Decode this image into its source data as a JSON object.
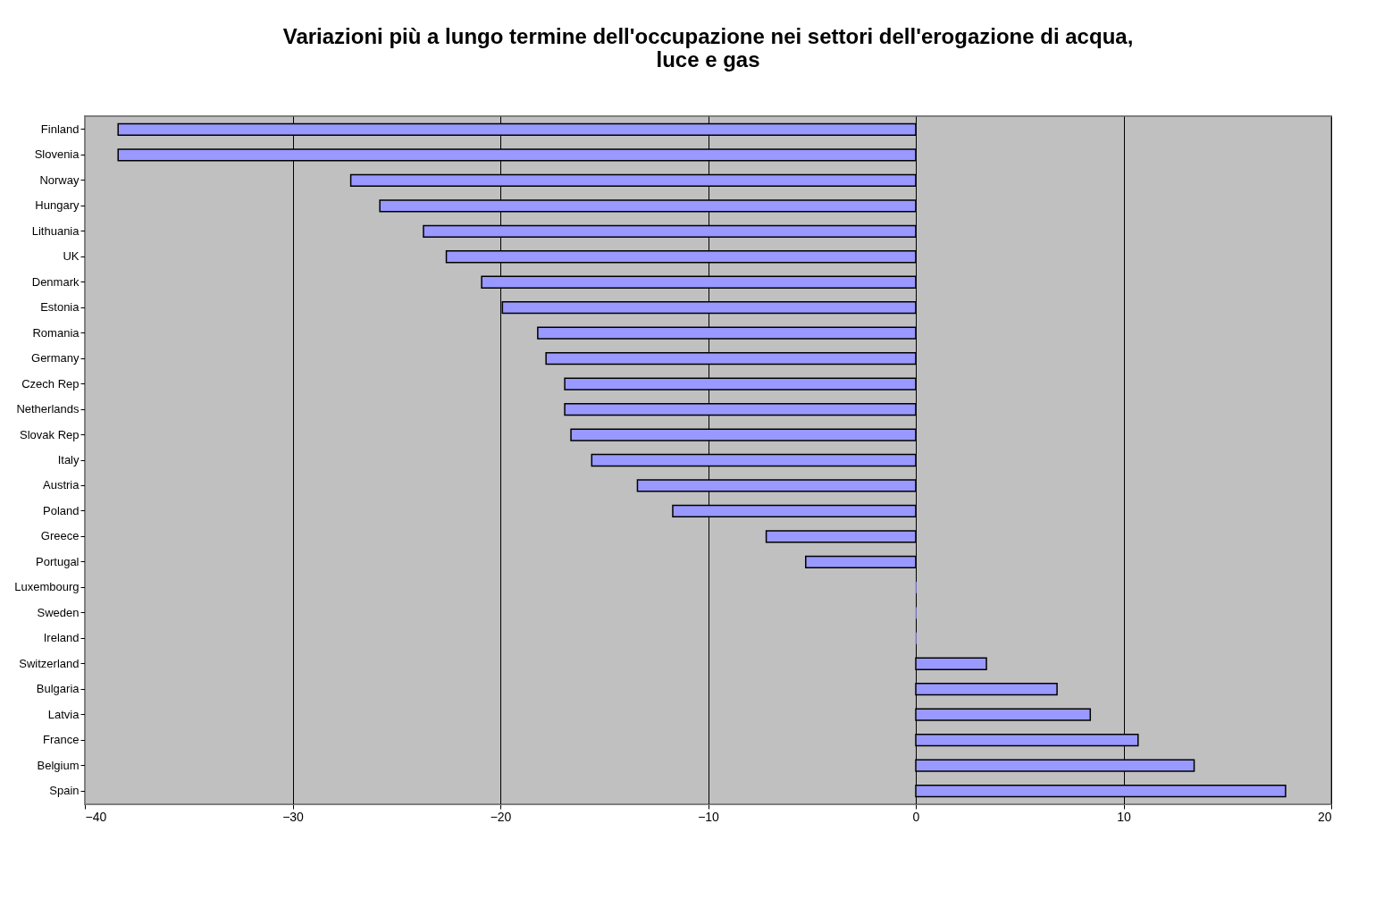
{
  "chart_data": {
    "type": "bar",
    "orientation": "horizontal",
    "title": [
      "Variazioni più a lungo termine dell'occupazione nei settori dell'erogazione di acqua,",
      "luce e gas"
    ],
    "categories": [
      "Finland",
      "Slovenia",
      "Norway",
      "Hungary",
      "Lithuania",
      "UK",
      "Denmark",
      "Estonia",
      "Romania",
      "Germany",
      "Czech Rep",
      "Netherlands",
      "Slovak Rep",
      "Italy",
      "Austria",
      "Poland",
      "Greece",
      "Portugal",
      "Luxembourg",
      "Sweden",
      "Ireland",
      "Switzerland",
      "Bulgaria",
      "Latvia",
      "France",
      "Belgium",
      "Spain"
    ],
    "values": [
      -38.4,
      -38.4,
      -27.2,
      -25.8,
      -23.7,
      -22.6,
      -20.9,
      -19.9,
      -18.2,
      -17.8,
      -16.9,
      -16.9,
      -16.6,
      -15.6,
      -13.4,
      -11.7,
      -7.2,
      -5.3,
      0,
      0,
      0,
      3.4,
      6.8,
      8.4,
      10.7,
      13.4,
      17.8
    ],
    "color": "#9999ff",
    "xlim": [
      -40,
      20
    ],
    "xticks": [
      -40,
      -30,
      -20,
      -10,
      0,
      10,
      20
    ],
    "grid": "x"
  }
}
